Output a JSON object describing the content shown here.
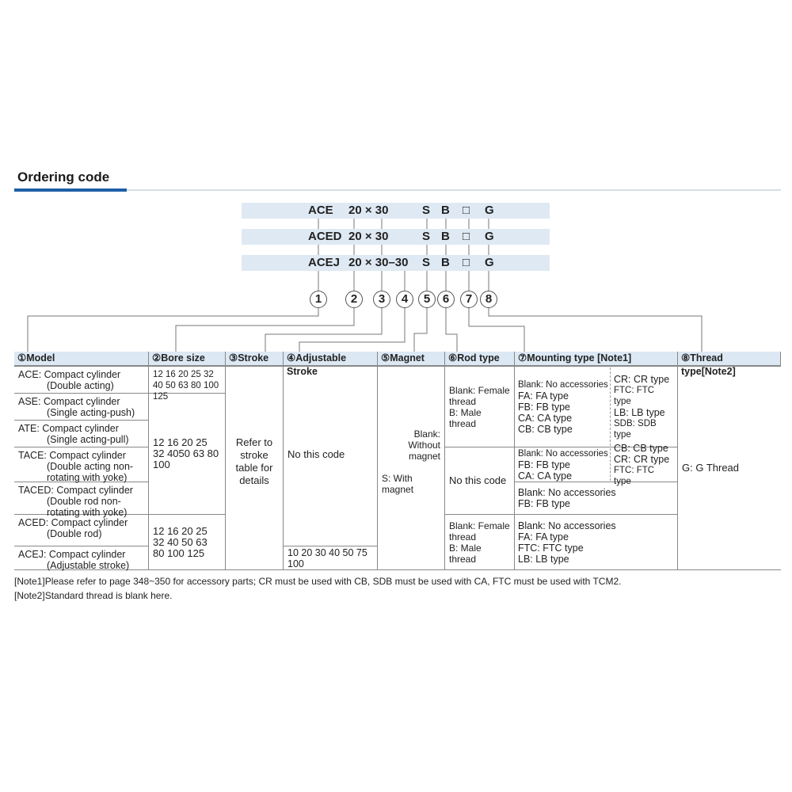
{
  "title": "Ordering code",
  "codes": [
    {
      "model": "ACE",
      "bore_stroke": "20 × 30",
      "magnet": "S",
      "rod": "B",
      "mount": "□",
      "thread": "G"
    },
    {
      "model": "ACED",
      "bore_stroke": "20 × 30",
      "magnet": "S",
      "rod": "B",
      "mount": "□",
      "thread": "G"
    },
    {
      "model": "ACEJ",
      "bore_stroke": "20 × 30–30",
      "magnet": "S",
      "rod": "B",
      "mount": "□",
      "thread": "G"
    }
  ],
  "circles": [
    "1",
    "2",
    "3",
    "4",
    "5",
    "6",
    "7",
    "8"
  ],
  "headers": [
    "①Model",
    "②Bore size",
    "③Stroke",
    "④Adjustable Stroke",
    "⑤Magnet",
    "⑥Rod type",
    "⑦Mounting type [Note1]",
    "⑧Thread type[Note2]"
  ],
  "models": [
    {
      "name": "ACE: Compact cylinder",
      "sub": "(Double acting)"
    },
    {
      "name": "ASE: Compact cylinder",
      "sub": "(Single acting-push)"
    },
    {
      "name": "ATE: Compact cylinder",
      "sub": "(Single acting-pull)"
    },
    {
      "name": "TACE: Compact cylinder",
      "sub": "(Double acting non-rotating with yoke)"
    },
    {
      "name": "TACED: Compact cylinder",
      "sub": "(Double rod non-rotating with yoke)"
    },
    {
      "name": "ACED: Compact cylinder",
      "sub": "(Double rod)"
    },
    {
      "name": "ACEJ: Compact cylinder",
      "sub": "(Adjustable stroke)"
    }
  ],
  "bore": [
    "12 16 20 25 32 40 50 63 80 100 125",
    "12 16 20 25 32 4050 63 80 100",
    "12 16 20 25 32 40 50 63 80 100 125"
  ],
  "stroke": "Refer to stroke table for details",
  "adjustable": [
    "No this code",
    "10 20 30 40 50 75 100"
  ],
  "magnet": [
    "Blank: Without magnet",
    "S: With magnet"
  ],
  "rod": [
    [
      "Blank: Female thread",
      "B: Male thread"
    ],
    [
      "No this code"
    ],
    [
      "Blank: Female thread",
      "B: Male thread"
    ]
  ],
  "mounting": [
    {
      "left": [
        "Blank: No accessories",
        "FA: FA type",
        "FB: FB type",
        "CA: CA type",
        "CB: CB type"
      ],
      "right": [
        "CR: CR type",
        "FTC: FTC type",
        "LB: LB type",
        "SDB: SDB type"
      ]
    },
    {
      "left": [
        "Blank: No accessories",
        "FB: FB type",
        "CA: CA type"
      ],
      "right": [
        "CB: CB type",
        "CR: CR type",
        "FTC: FTC type"
      ]
    },
    {
      "left": [
        "Blank: No accessories",
        "FB: FB type"
      ]
    },
    {
      "left": [
        "Blank: No accessories",
        "FA: FA type",
        "FTC: FTC type",
        "LB: LB type"
      ]
    }
  ],
  "thread": "G: G Thread",
  "notes": [
    "[Note1]Please refer to page 348~350 for accessory parts; CR must be used with CB, SDB must be used with CA, FTC must be used with TCM2.",
    "[Note2]Standard thread is blank here."
  ]
}
